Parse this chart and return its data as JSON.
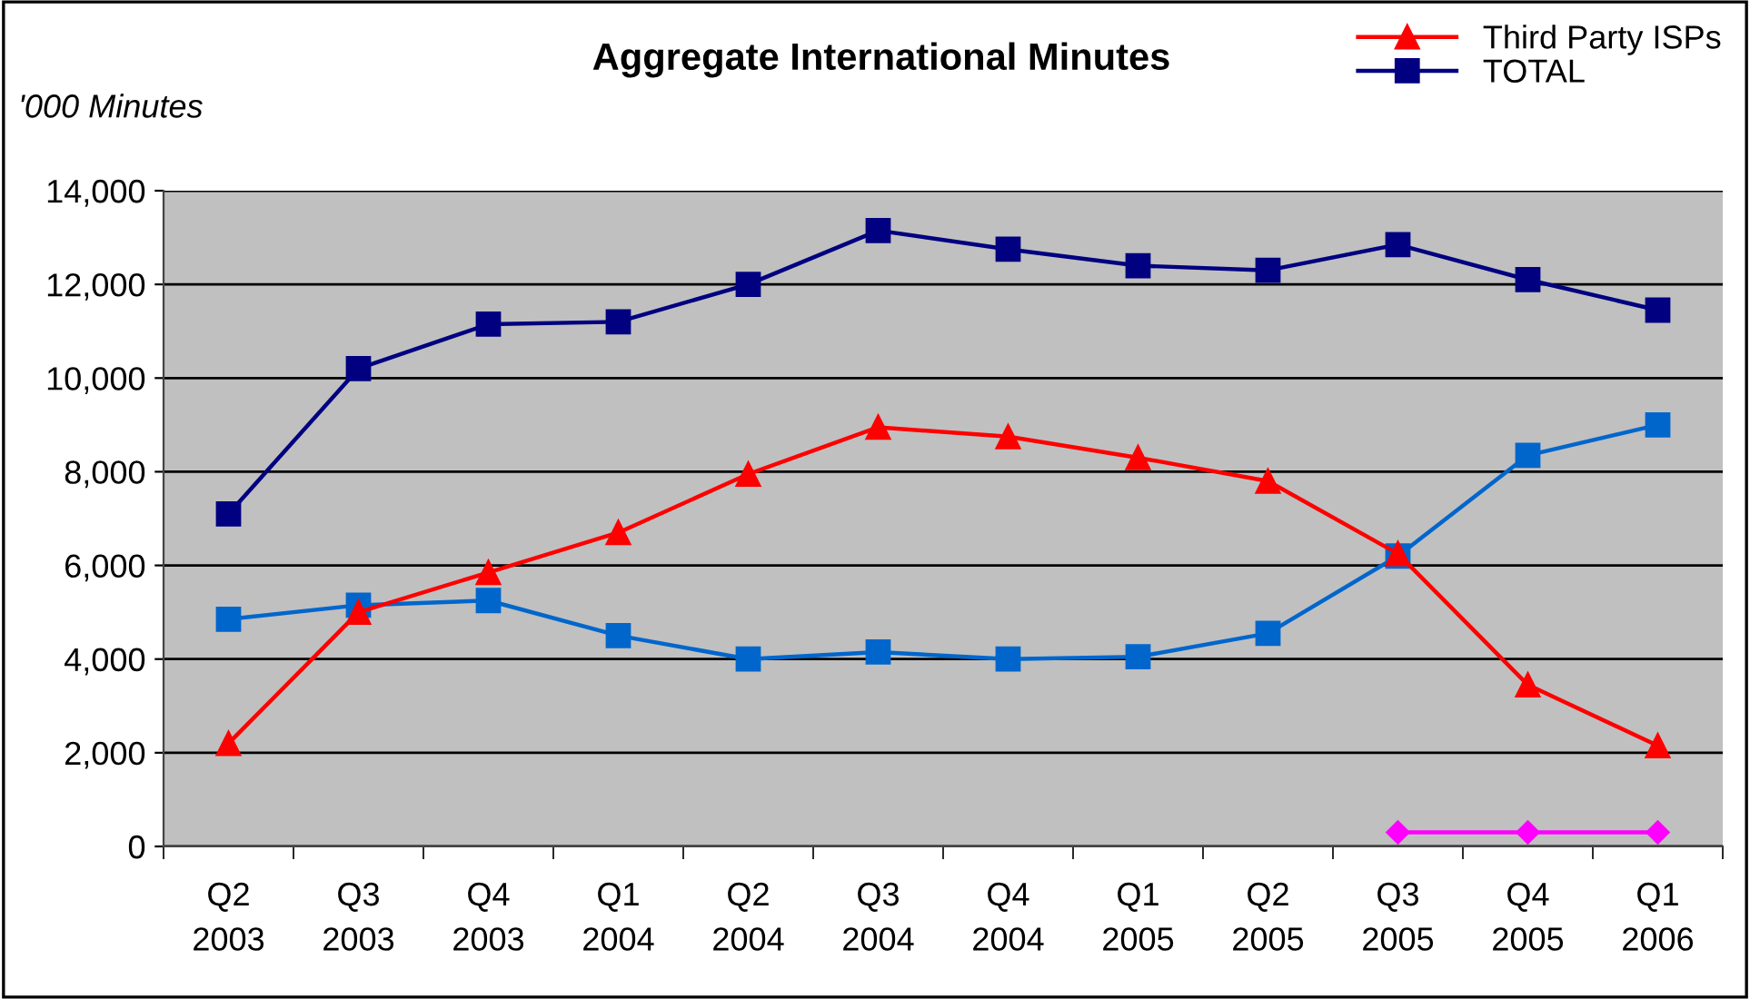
{
  "chart_data": {
    "type": "line",
    "title": "Aggregate International Minutes",
    "ylabel": "'000 Minutes",
    "categories": [
      "Q2\n2003",
      "Q3\n2003",
      "Q4\n2003",
      "Q1\n2004",
      "Q2\n2004",
      "Q3\n2004",
      "Q4\n2004",
      "Q1\n2005",
      "Q2\n2005",
      "Q3\n2005",
      "Q4\n2005",
      "Q1\n2006"
    ],
    "series": [
      {
        "color": "#ff00ff",
        "marker": "diamond",
        "values": [
          null,
          null,
          null,
          null,
          null,
          null,
          null,
          null,
          null,
          300,
          300,
          300
        ]
      },
      {
        "color": "#0066cc",
        "marker": "square",
        "values": [
          4850,
          5150,
          5250,
          4500,
          4000,
          4150,
          4000,
          4050,
          4550,
          6200,
          8350,
          9000
        ]
      },
      {
        "name": "Third Party ISPs",
        "color": "#ff0000",
        "marker": "triangle",
        "values": [
          2200,
          5000,
          5850,
          6700,
          7950,
          8950,
          8750,
          8300,
          7800,
          6250,
          3450,
          2150
        ]
      },
      {
        "name": "TOTAL",
        "color": "#000080",
        "marker": "square",
        "values": [
          7100,
          10200,
          11150,
          11200,
          12000,
          13150,
          12750,
          12400,
          12300,
          12850,
          12100,
          11450
        ]
      }
    ],
    "ylim": [
      0,
      14000
    ],
    "yticks": [
      {
        "value": 0,
        "label": "0"
      },
      {
        "value": 2000,
        "label": "2,000"
      },
      {
        "value": 4000,
        "label": "4,000"
      },
      {
        "value": 6000,
        "label": "6,000"
      },
      {
        "value": 8000,
        "label": "8,000"
      },
      {
        "value": 10000,
        "label": "10,000"
      },
      {
        "value": 12000,
        "label": "12,000"
      },
      {
        "value": 14000,
        "label": "14,000"
      }
    ],
    "grid": "y",
    "legend": "top right"
  }
}
